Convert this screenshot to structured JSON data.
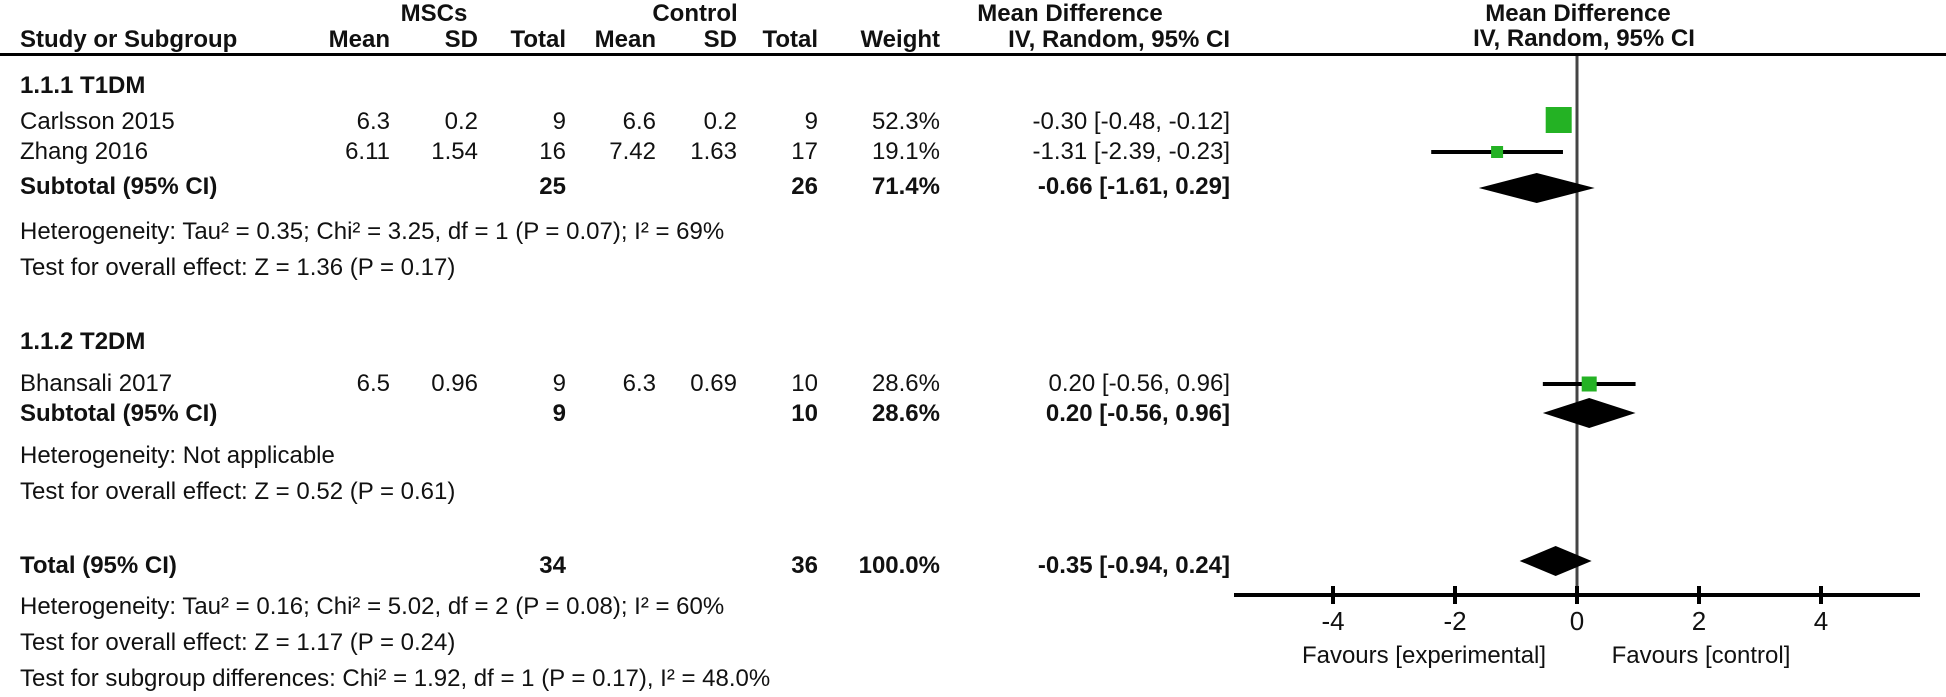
{
  "table": {
    "header": {
      "study_col": "Study or Subgroup",
      "mscs_group": "MSCs",
      "control_group": "Control",
      "mean": "Mean",
      "sd": "SD",
      "total": "Total",
      "weight": "Weight",
      "md_header": "Mean Difference",
      "md_subheader": "IV, Random, 95% CI"
    },
    "sections": [
      {
        "title": "1.1.1 T1DM",
        "studies": [
          {
            "name": "Carlsson 2015",
            "mean1": "6.3",
            "sd1": "0.2",
            "total1": "9",
            "mean2": "6.6",
            "sd2": "0.2",
            "total2": "9",
            "weight": "52.3%",
            "ci": "-0.30 [-0.48, -0.12]"
          },
          {
            "name": "Zhang 2016",
            "mean1": "6.11",
            "sd1": "1.54",
            "total1": "16",
            "mean2": "7.42",
            "sd2": "1.63",
            "total2": "17",
            "weight": "19.1%",
            "ci": "-1.31 [-2.39, -0.23]"
          }
        ],
        "subtotal": {
          "name": "Subtotal (95% CI)",
          "total1": "25",
          "total2": "26",
          "weight": "71.4%",
          "ci": "-0.66 [-1.61, 0.29]"
        },
        "heterogeneity": "Heterogeneity: Tau² = 0.35; Chi² = 3.25, df = 1 (P = 0.07); I² = 69%",
        "overall_effect": "Test for overall effect: Z = 1.36 (P = 0.17)"
      },
      {
        "title": "1.1.2 T2DM",
        "studies": [
          {
            "name": "Bhansali 2017",
            "mean1": "6.5",
            "sd1": "0.96",
            "total1": "9",
            "mean2": "6.3",
            "sd2": "0.69",
            "total2": "10",
            "weight": "28.6%",
            "ci": "0.20 [-0.56, 0.96]"
          }
        ],
        "subtotal": {
          "name": "Subtotal (95% CI)",
          "total1": "9",
          "total2": "10",
          "weight": "28.6%",
          "ci": "0.20 [-0.56, 0.96]"
        },
        "heterogeneity": "Heterogeneity: Not applicable",
        "overall_effect": "Test for overall effect: Z = 0.52 (P = 0.61)"
      }
    ],
    "total": {
      "name": "Total (95% CI)",
      "total1": "34",
      "total2": "36",
      "weight": "100.0%",
      "ci": "-0.35 [-0.94, 0.24]"
    },
    "total_heterogeneity": "Heterogeneity: Tau² = 0.16; Chi² = 5.02, df = 2 (P = 0.08); I² = 60%",
    "total_overall_effect": "Test for overall effect: Z = 1.17 (P = 0.24)",
    "subgroup_differences": "Test for subgroup differences: Chi² = 1.92, df = 1 (P = 0.17), I² = 48.0%"
  },
  "chart_data": {
    "type": "forest",
    "title": "Mean Difference, IV, Random, 95% CI",
    "x_axis": {
      "ticks": [
        "-4",
        "-2",
        "0",
        "2",
        "4"
      ],
      "tick_values": [
        -4,
        -2,
        0,
        2,
        4
      ],
      "range": [
        -5.6,
        5.6
      ],
      "label_left": "Favours [experimental]",
      "label_right": "Favours [control]"
    },
    "studies": [
      {
        "label": "Carlsson 2015",
        "group": "1.1.1 T1DM",
        "md": -0.3,
        "ci": [
          -0.48,
          -0.12
        ],
        "weight_pct": 52.3
      },
      {
        "label": "Zhang 2016",
        "group": "1.1.1 T1DM",
        "md": -1.31,
        "ci": [
          -2.39,
          -0.23
        ],
        "weight_pct": 19.1
      },
      {
        "label": "Bhansali 2017",
        "group": "1.1.2 T2DM",
        "md": 0.2,
        "ci": [
          -0.56,
          0.96
        ],
        "weight_pct": 28.6
      }
    ],
    "summaries": [
      {
        "label": "Subtotal (95% CI) T1DM",
        "md": -0.66,
        "ci": [
          -1.61,
          0.29
        ]
      },
      {
        "label": "Subtotal (95% CI) T2DM",
        "md": 0.2,
        "ci": [
          -0.56,
          0.96
        ]
      },
      {
        "label": "Total (95% CI)",
        "md": -0.35,
        "ci": [
          -0.94,
          0.24
        ]
      }
    ],
    "marker_color": "#24b224",
    "summary_color": "#000000",
    "line_color": "#000000",
    "zero_line_color": "#444444"
  }
}
